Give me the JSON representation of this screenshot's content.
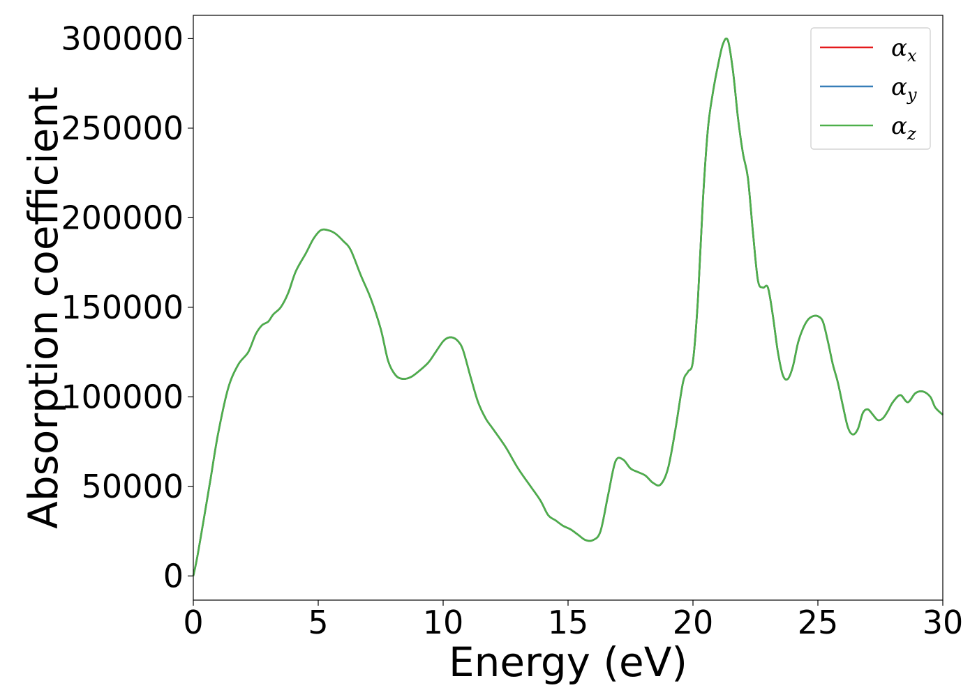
{
  "chart_data": {
    "type": "line",
    "xlabel": "Energy (eV)",
    "ylabel": "Absorption coefficient",
    "xlim": [
      0,
      30
    ],
    "ylim": [
      -13500,
      313000
    ],
    "xticks": [
      0,
      5,
      10,
      15,
      20,
      25,
      30
    ],
    "yticks": [
      0,
      50000,
      100000,
      150000,
      200000,
      250000,
      300000
    ],
    "grid": false,
    "legend_position": "top-right",
    "legend": [
      {
        "symbol": "α",
        "sub": "x",
        "color": "#e41a1c"
      },
      {
        "symbol": "α",
        "sub": "y",
        "color": "#377eb8"
      },
      {
        "symbol": "α",
        "sub": "z",
        "color": "#4daf4a"
      }
    ],
    "x": [
      0,
      0.15,
      0.4,
      0.7,
      1.0,
      1.4,
      1.8,
      2.2,
      2.5,
      2.75,
      3.0,
      3.2,
      3.5,
      3.8,
      4.1,
      4.5,
      4.8,
      5.1,
      5.4,
      5.7,
      6.0,
      6.3,
      6.7,
      7.1,
      7.5,
      7.8,
      8.1,
      8.4,
      8.7,
      9.0,
      9.4,
      9.7,
      10.0,
      10.2,
      10.4,
      10.6,
      10.8,
      11.1,
      11.4,
      11.7,
      12.0,
      12.5,
      13.0,
      13.5,
      13.9,
      14.2,
      14.5,
      14.8,
      15.1,
      15.4,
      15.7,
      16.0,
      16.3,
      16.6,
      16.9,
      17.2,
      17.5,
      17.8,
      18.1,
      18.4,
      18.7,
      19.0,
      19.3,
      19.6,
      19.8,
      20.0,
      20.2,
      20.4,
      20.6,
      20.8,
      21.0,
      21.2,
      21.4,
      21.6,
      21.8,
      22.0,
      22.2,
      22.4,
      22.6,
      22.8,
      23.0,
      23.2,
      23.4,
      23.6,
      23.8,
      24.0,
      24.2,
      24.4,
      24.6,
      24.8,
      25.0,
      25.2,
      25.4,
      25.6,
      25.8,
      26.0,
      26.2,
      26.4,
      26.6,
      26.8,
      27.0,
      27.2,
      27.4,
      27.6,
      27.8,
      28.0,
      28.3,
      28.6,
      28.9,
      29.2,
      29.5,
      29.7,
      30.0
    ],
    "series": [
      {
        "name": "α_x",
        "color": "#e41a1c",
        "values": [
          0,
          10000,
          30000,
          55000,
          80000,
          105000,
          118000,
          125000,
          135000,
          140000,
          142000,
          146000,
          150000,
          158000,
          170000,
          180000,
          188000,
          193000,
          193000,
          191000,
          187000,
          182000,
          168000,
          155000,
          138000,
          120000,
          112000,
          110000,
          111000,
          114000,
          119000,
          125000,
          131000,
          133000,
          133000,
          131000,
          126000,
          111000,
          97000,
          88000,
          82000,
          72000,
          60000,
          50000,
          42000,
          34000,
          31000,
          28000,
          26000,
          23000,
          20000,
          20000,
          25000,
          45000,
          64000,
          65000,
          60000,
          58000,
          56000,
          52000,
          51000,
          60000,
          82000,
          108000,
          114000,
          120000,
          155000,
          210000,
          250000,
          270000,
          285000,
          297000,
          299000,
          282000,
          256000,
          236000,
          222000,
          192000,
          165000,
          161000,
          161000,
          145000,
          125000,
          112000,
          110000,
          117000,
          130000,
          138000,
          143000,
          145000,
          145000,
          142000,
          131000,
          118000,
          108000,
          95000,
          83000,
          79000,
          82000,
          91000,
          93000,
          90000,
          87000,
          88000,
          92000,
          97000,
          101000,
          97000,
          102000,
          103000,
          100000,
          94000,
          90000
        ]
      },
      {
        "name": "α_y",
        "color": "#377eb8",
        "values": [
          0,
          10000,
          30000,
          55000,
          80000,
          105000,
          118000,
          125000,
          135000,
          140000,
          142000,
          146000,
          150000,
          158000,
          170000,
          180000,
          188000,
          193000,
          193000,
          191000,
          187000,
          182000,
          168000,
          155000,
          138000,
          120000,
          112000,
          110000,
          111000,
          114000,
          119000,
          125000,
          131000,
          133000,
          133000,
          131000,
          126000,
          111000,
          97000,
          88000,
          82000,
          72000,
          60000,
          50000,
          42000,
          34000,
          31000,
          28000,
          26000,
          23000,
          20000,
          20000,
          25000,
          45000,
          64000,
          65000,
          60000,
          58000,
          56000,
          52000,
          51000,
          60000,
          82000,
          108000,
          114000,
          120000,
          155000,
          210000,
          250000,
          270000,
          285000,
          297000,
          299000,
          282000,
          256000,
          236000,
          222000,
          192000,
          165000,
          161000,
          161000,
          145000,
          125000,
          112000,
          110000,
          117000,
          130000,
          138000,
          143000,
          145000,
          145000,
          142000,
          131000,
          118000,
          108000,
          95000,
          83000,
          79000,
          82000,
          91000,
          93000,
          90000,
          87000,
          88000,
          92000,
          97000,
          101000,
          97000,
          102000,
          103000,
          100000,
          94000,
          90000
        ]
      },
      {
        "name": "α_z",
        "color": "#4daf4a",
        "values": [
          0,
          10000,
          30000,
          55000,
          80000,
          105000,
          118000,
          125000,
          135000,
          140000,
          142000,
          146000,
          150000,
          158000,
          170000,
          180000,
          188000,
          193000,
          193000,
          191000,
          187000,
          182000,
          168000,
          155000,
          138000,
          120000,
          112000,
          110000,
          111000,
          114000,
          119000,
          125000,
          131000,
          133000,
          133000,
          131000,
          126000,
          111000,
          97000,
          88000,
          82000,
          72000,
          60000,
          50000,
          42000,
          34000,
          31000,
          28000,
          26000,
          23000,
          20000,
          20000,
          25000,
          45000,
          64000,
          65000,
          60000,
          58000,
          56000,
          52000,
          51000,
          60000,
          82000,
          108000,
          114000,
          120000,
          155000,
          210000,
          250000,
          270000,
          285000,
          297000,
          299000,
          282000,
          256000,
          236000,
          222000,
          192000,
          165000,
          161000,
          161000,
          145000,
          125000,
          112000,
          110000,
          117000,
          130000,
          138000,
          143000,
          145000,
          145000,
          142000,
          131000,
          118000,
          108000,
          95000,
          83000,
          79000,
          82000,
          91000,
          93000,
          90000,
          87000,
          88000,
          92000,
          97000,
          101000,
          97000,
          102000,
          103000,
          100000,
          94000,
          90000
        ]
      }
    ]
  }
}
